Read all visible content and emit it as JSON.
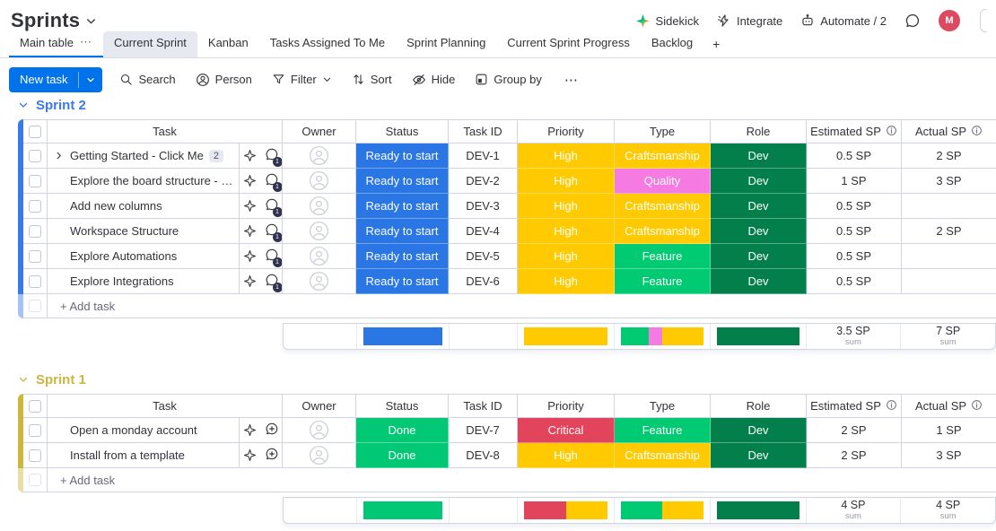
{
  "app": {
    "title": "Sprints"
  },
  "topbar": {
    "actions": [
      {
        "name": "sidekick",
        "label": "Sidekick"
      },
      {
        "name": "integrate",
        "label": "Integrate"
      },
      {
        "name": "automate",
        "label": "Automate / 2"
      }
    ],
    "avatar_initial": "M"
  },
  "tabs": {
    "items": [
      {
        "label": "Main table",
        "active": true,
        "has_menu": true
      },
      {
        "label": "Current Sprint",
        "highlighted": true
      },
      {
        "label": "Kanban"
      },
      {
        "label": "Tasks Assigned To Me"
      },
      {
        "label": "Sprint Planning"
      },
      {
        "label": "Current Sprint Progress"
      },
      {
        "label": "Backlog"
      }
    ],
    "add_label": "+"
  },
  "toolbar": {
    "new_task_label": "New task",
    "buttons": [
      {
        "name": "search",
        "label": "Search"
      },
      {
        "name": "person",
        "label": "Person"
      },
      {
        "name": "filter",
        "label": "Filter",
        "has_chevron": true
      },
      {
        "name": "sort",
        "label": "Sort"
      },
      {
        "name": "hide",
        "label": "Hide"
      },
      {
        "name": "group-by",
        "label": "Group by"
      }
    ],
    "more_label": "⋯"
  },
  "table": {
    "columns": [
      "Task",
      "Owner",
      "Status",
      "Task ID",
      "Priority",
      "Type",
      "Role",
      "Estimated SP",
      "Actual SP"
    ],
    "info_icon_columns": [
      "Estimated SP",
      "Actual SP"
    ]
  },
  "labels": {
    "add_task": "+ Add task",
    "sum": "sum"
  },
  "colors": {
    "accent_blue": "#0073ea",
    "ready_to_start": "#2b76e5",
    "done": "#00c875",
    "feature": "#00ca72",
    "high_yellow": "#ffcb00",
    "quality_pink": "#f57ae1",
    "critical_red": "#e2445c",
    "dev_green": "#037f4c",
    "group_sprint2": "#3a79e8",
    "group_sprint1": "#cab641",
    "avatar_red": "#dc4a62"
  },
  "groups": [
    {
      "name": "Sprint 2",
      "color": "#3a79e8",
      "rows": [
        {
          "task": "Getting Started - Click Me",
          "badge": "2",
          "expand": true,
          "bubble": "badge",
          "bubble_count": "1",
          "status": "Ready to start",
          "status_color": "#2b76e5",
          "task_id": "DEV-1",
          "priority": "High",
          "priority_color": "#ffcb00",
          "type": "Craftsmanship",
          "type_color": "#ffcb00",
          "role": "Dev",
          "role_color": "#037f4c",
          "estimated": "0.5 SP",
          "actual": "2 SP"
        },
        {
          "task": "Explore the board structure - Cli…",
          "bubble": "badge",
          "bubble_count": "1",
          "status": "Ready to start",
          "status_color": "#2b76e5",
          "task_id": "DEV-2",
          "priority": "High",
          "priority_color": "#ffcb00",
          "type": "Quality",
          "type_color": "#f57ae1",
          "role": "Dev",
          "role_color": "#037f4c",
          "estimated": "1 SP",
          "actual": "3 SP"
        },
        {
          "task": "Add new columns",
          "bubble": "badge",
          "bubble_count": "1",
          "status": "Ready to start",
          "status_color": "#2b76e5",
          "task_id": "DEV-3",
          "priority": "High",
          "priority_color": "#ffcb00",
          "type": "Craftsmanship",
          "type_color": "#ffcb00",
          "role": "Dev",
          "role_color": "#037f4c",
          "estimated": "0.5 SP",
          "actual": ""
        },
        {
          "task": "Workspace Structure",
          "bubble": "badge",
          "bubble_count": "1",
          "status": "Ready to start",
          "status_color": "#2b76e5",
          "task_id": "DEV-4",
          "priority": "High",
          "priority_color": "#ffcb00",
          "type": "Craftsmanship",
          "type_color": "#ffcb00",
          "role": "Dev",
          "role_color": "#037f4c",
          "estimated": "0.5 SP",
          "actual": "2 SP"
        },
        {
          "task": "Explore Automations",
          "bubble": "badge",
          "bubble_count": "1",
          "status": "Ready to start",
          "status_color": "#2b76e5",
          "task_id": "DEV-5",
          "priority": "High",
          "priority_color": "#ffcb00",
          "type": "Feature",
          "type_color": "#00ca72",
          "role": "Dev",
          "role_color": "#037f4c",
          "estimated": "0.5 SP",
          "actual": ""
        },
        {
          "task": "Explore Integrations",
          "bubble": "badge",
          "bubble_count": "1",
          "status": "Ready to start",
          "status_color": "#2b76e5",
          "task_id": "DEV-6",
          "priority": "High",
          "priority_color": "#ffcb00",
          "type": "Feature",
          "type_color": "#00ca72",
          "role": "Dev",
          "role_color": "#037f4c",
          "estimated": "0.5 SP",
          "actual": ""
        }
      ],
      "summary": {
        "status_segments": [
          {
            "color": "#2b76e5",
            "pct": 100
          }
        ],
        "priority_segments": [
          {
            "color": "#ffcb00",
            "pct": 100
          }
        ],
        "type_segments": [
          {
            "color": "#00ca72",
            "pct": 33.3
          },
          {
            "color": "#f57ae1",
            "pct": 16.7
          },
          {
            "color": "#ffcb00",
            "pct": 50
          }
        ],
        "role_segments": [
          {
            "color": "#037f4c",
            "pct": 100
          }
        ],
        "estimated_sum": "3.5 SP",
        "actual_sum": "7 SP"
      }
    },
    {
      "name": "Sprint 1",
      "color": "#cab641",
      "rows": [
        {
          "task": "Open a monday account",
          "bubble": "plus",
          "status": "Done",
          "status_color": "#00c875",
          "task_id": "DEV-7",
          "priority": "Critical",
          "priority_color": "#e2445c",
          "type": "Feature",
          "type_color": "#00ca72",
          "role": "Dev",
          "role_color": "#037f4c",
          "estimated": "2 SP",
          "actual": "1 SP"
        },
        {
          "task": "Install from a template",
          "bubble": "plus",
          "status": "Done",
          "status_color": "#00c875",
          "task_id": "DEV-8",
          "priority": "High",
          "priority_color": "#ffcb00",
          "type": "Craftsmanship",
          "type_color": "#ffcb00",
          "role": "Dev",
          "role_color": "#037f4c",
          "estimated": "2 SP",
          "actual": "3 SP"
        }
      ],
      "summary": {
        "status_segments": [
          {
            "color": "#00c875",
            "pct": 100
          }
        ],
        "priority_segments": [
          {
            "color": "#e2445c",
            "pct": 50
          },
          {
            "color": "#ffcb00",
            "pct": 50
          }
        ],
        "type_segments": [
          {
            "color": "#00ca72",
            "pct": 50
          },
          {
            "color": "#ffcb00",
            "pct": 50
          }
        ],
        "role_segments": [
          {
            "color": "#037f4c",
            "pct": 100
          }
        ],
        "estimated_sum": "4 SP",
        "actual_sum": "4 SP"
      }
    }
  ]
}
